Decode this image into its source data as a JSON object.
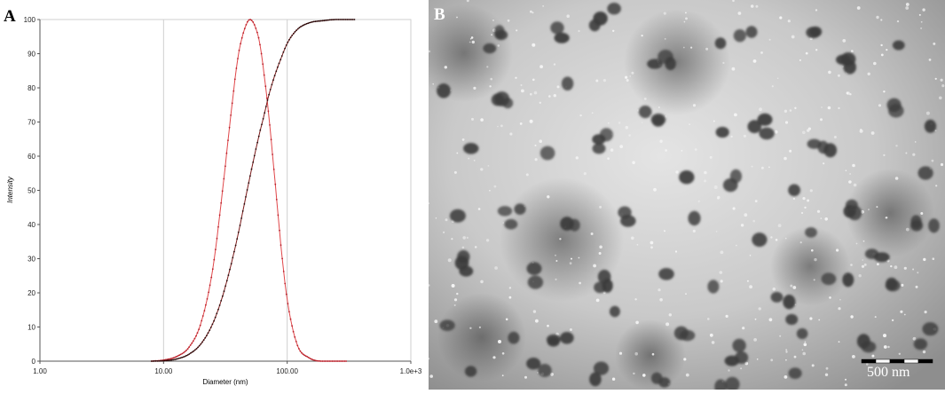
{
  "panels": {
    "a_label": "A",
    "b_label": "B"
  },
  "chart_data": {
    "type": "line",
    "xlabel": "Diameter (nm)",
    "ylabel": "Intensity",
    "x_scale": "log",
    "xlim": [
      1,
      1000
    ],
    "ylim": [
      0,
      100
    ],
    "x_ticks": [
      1,
      10,
      100,
      1000
    ],
    "x_tick_labels": [
      "1.00",
      "10.00",
      "100.00",
      "1.0e+3"
    ],
    "y_ticks": [
      0,
      10,
      20,
      30,
      40,
      50,
      60,
      70,
      80,
      90,
      100
    ],
    "y_tick_labels": [
      "0",
      "10",
      "20",
      "30",
      "40",
      "50",
      "60",
      "70",
      "80",
      "90",
      "100"
    ],
    "grid": "vertical",
    "series": [
      {
        "kind": "distribution",
        "color": "#e0474a",
        "marker_color": "#b8202a",
        "x": [
          8,
          10,
          13,
          16,
          20,
          25,
          30,
          35,
          40,
          45,
          50,
          55,
          60,
          65,
          70,
          80,
          90,
          100,
          120,
          150,
          200,
          300
        ],
        "y": [
          0,
          0.3,
          1.5,
          4,
          11,
          27,
          50,
          72,
          89,
          97,
          100,
          98,
          93,
          84,
          74,
          52,
          32,
          18,
          5,
          1,
          0,
          0
        ]
      },
      {
        "kind": "cumulative",
        "color": "#7a1a1a",
        "marker_color": "#2a0a0a",
        "x": [
          8,
          10,
          13,
          16,
          20,
          25,
          30,
          35,
          40,
          45,
          50,
          55,
          60,
          65,
          70,
          80,
          90,
          100,
          120,
          150,
          200,
          250,
          300,
          350
        ],
        "y": [
          0,
          0.1,
          0.7,
          2,
          5,
          11,
          19,
          28,
          37,
          46,
          54,
          61,
          67,
          72,
          77,
          84,
          89,
          93,
          97,
          99,
          99.7,
          100,
          100,
          100
        ]
      }
    ]
  },
  "micrograph": {
    "scale_bar_label": "500 nm",
    "scale_bar_colors": [
      "#000000",
      "#ffffff"
    ]
  }
}
